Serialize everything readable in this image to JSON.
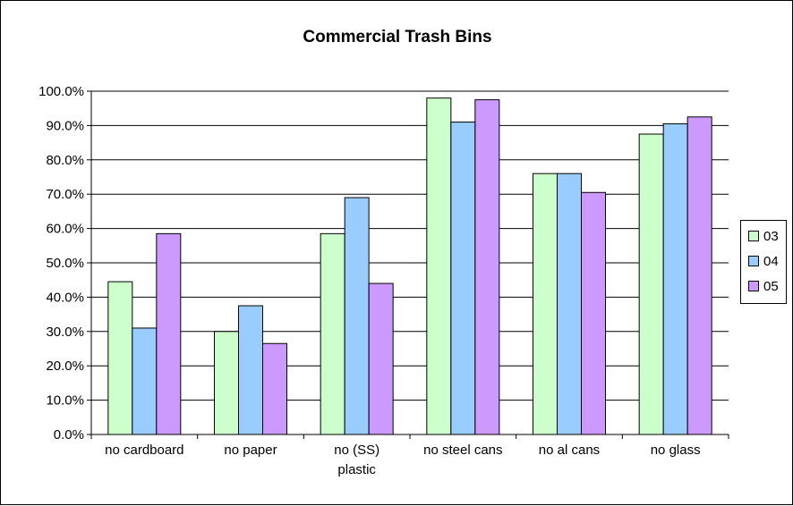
{
  "chart_data": {
    "type": "bar",
    "title": "Commercial Trash Bins",
    "xlabel": "",
    "ylabel": "",
    "ylim": [
      0,
      100
    ],
    "yticks": [
      "0.0%",
      "10.0%",
      "20.0%",
      "30.0%",
      "40.0%",
      "50.0%",
      "60.0%",
      "70.0%",
      "80.0%",
      "90.0%",
      "100.0%"
    ],
    "categories": [
      [
        "no cardboard"
      ],
      [
        "no paper"
      ],
      [
        "no (SS)",
        "plastic"
      ],
      [
        "no steel cans"
      ],
      [
        "no al cans"
      ],
      [
        "no glass"
      ]
    ],
    "series": [
      {
        "name": "03",
        "color": "#ccffcc",
        "values": [
          44.5,
          30.0,
          58.5,
          98.0,
          76.0,
          87.5
        ]
      },
      {
        "name": "04",
        "color": "#99ccff",
        "values": [
          31.0,
          37.5,
          69.0,
          91.0,
          76.0,
          90.5
        ]
      },
      {
        "name": "05",
        "color": "#cc99ff",
        "values": [
          58.5,
          26.5,
          44.0,
          97.5,
          70.5,
          92.5
        ]
      }
    ],
    "grid": "horizontal",
    "legend_position": "right"
  }
}
